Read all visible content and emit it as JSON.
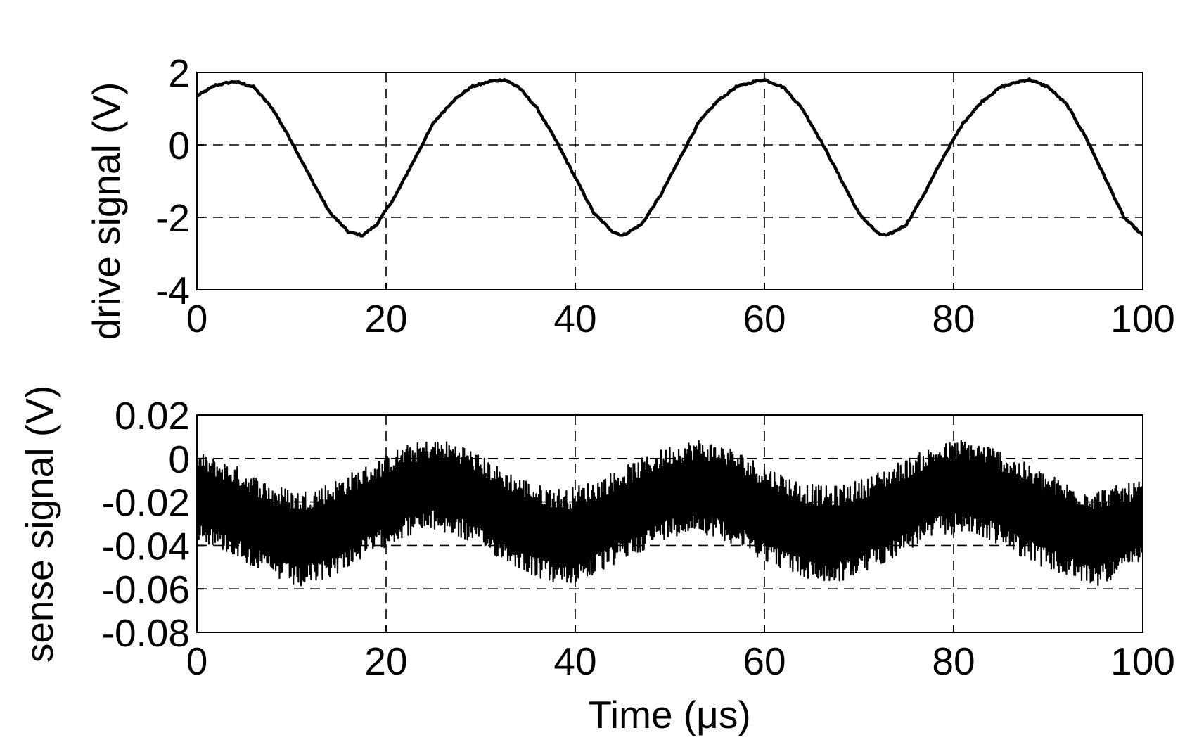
{
  "chart_data": [
    {
      "type": "line",
      "ylabel": "drive signal (V)",
      "xlabel": "",
      "xlim": [
        0,
        100
      ],
      "ylim": [
        -4,
        2
      ],
      "xticks": [
        0,
        20,
        40,
        60,
        80,
        100
      ],
      "yticks": [
        2,
        0,
        -2,
        -4
      ],
      "xtick_labels": [
        "0",
        "20",
        "40",
        "60",
        "80",
        "100"
      ],
      "ytick_labels": [
        "2",
        "0",
        "-2",
        "-4"
      ],
      "grid": true,
      "series": [
        {
          "x": [
            0,
            2,
            4,
            6,
            8,
            10,
            12,
            14,
            16,
            17.5,
            19,
            21,
            23,
            25,
            27,
            29,
            31,
            32.5,
            34,
            36,
            38,
            40,
            42,
            44,
            45,
            47,
            49,
            51,
            53,
            55,
            57,
            59,
            60,
            62,
            64,
            66,
            68,
            70,
            72,
            73,
            75,
            77,
            79,
            81,
            83,
            85,
            87,
            88,
            90,
            92,
            94,
            96,
            98,
            100
          ],
          "y": [
            1.35,
            1.65,
            1.75,
            1.6,
            1.0,
            0.1,
            -0.9,
            -1.85,
            -2.4,
            -2.5,
            -2.2,
            -1.4,
            -0.4,
            0.6,
            1.2,
            1.6,
            1.75,
            1.8,
            1.6,
            1.0,
            0.1,
            -0.9,
            -1.9,
            -2.4,
            -2.5,
            -2.2,
            -1.4,
            -0.4,
            0.6,
            1.2,
            1.6,
            1.75,
            1.8,
            1.6,
            1.0,
            0.1,
            -0.9,
            -1.9,
            -2.45,
            -2.5,
            -2.2,
            -1.3,
            -0.3,
            0.6,
            1.2,
            1.6,
            1.75,
            1.8,
            1.6,
            1.1,
            0.2,
            -0.9,
            -2.0,
            -2.5
          ]
        }
      ]
    },
    {
      "type": "line",
      "ylabel": "sense signal (V)",
      "xlabel": "Time (μs)",
      "xlim": [
        0,
        100
      ],
      "ylim": [
        -0.08,
        0.02
      ],
      "xticks": [
        0,
        20,
        40,
        60,
        80,
        100
      ],
      "yticks": [
        0.02,
        0,
        -0.02,
        -0.04,
        -0.06,
        -0.08
      ],
      "xtick_labels": [
        "0",
        "20",
        "40",
        "60",
        "80",
        "100"
      ],
      "ytick_labels": [
        "0.02",
        "0",
        "-0.02",
        "-0.04",
        "-0.06",
        "-0.08"
      ],
      "grid": true,
      "series": [
        {
          "envelope_x": [
            0,
            4,
            8,
            11,
            14,
            18,
            22,
            25,
            28,
            32,
            36,
            39,
            42,
            46,
            50,
            53,
            56,
            60,
            64,
            67,
            70,
            74,
            78,
            81,
            84,
            88,
            92,
            95,
            98,
            100
          ],
          "envelope_upper": [
            0.003,
            -0.003,
            -0.012,
            -0.015,
            -0.011,
            -0.003,
            0.006,
            0.009,
            0.007,
            -0.004,
            -0.012,
            -0.014,
            -0.01,
            -0.002,
            0.006,
            0.009,
            0.006,
            -0.003,
            -0.011,
            -0.013,
            -0.01,
            -0.002,
            0.006,
            0.009,
            0.006,
            -0.003,
            -0.011,
            -0.014,
            -0.012,
            -0.01
          ],
          "envelope_lower": [
            -0.037,
            -0.045,
            -0.055,
            -0.06,
            -0.055,
            -0.045,
            -0.036,
            -0.033,
            -0.037,
            -0.046,
            -0.055,
            -0.059,
            -0.054,
            -0.045,
            -0.036,
            -0.034,
            -0.038,
            -0.047,
            -0.055,
            -0.058,
            -0.054,
            -0.045,
            -0.036,
            -0.034,
            -0.038,
            -0.047,
            -0.055,
            -0.059,
            -0.053,
            -0.048
          ]
        }
      ]
    }
  ]
}
